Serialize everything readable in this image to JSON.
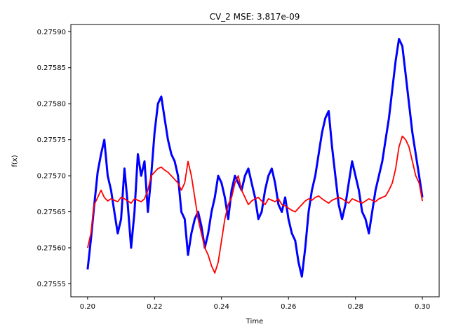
{
  "chart_data": {
    "type": "line",
    "title": "CV_2 MSE: 3.817e-09",
    "xlabel": "Time",
    "ylabel": "f(x)",
    "xlim": [
      0.195,
      0.305
    ],
    "ylim": [
      0.275532,
      0.27591
    ],
    "xticks": [
      0.2,
      0.22,
      0.24,
      0.26,
      0.28,
      0.3
    ],
    "xtick_labels": [
      "0.20",
      "0.22",
      "0.24",
      "0.26",
      "0.28",
      "0.30"
    ],
    "yticks": [
      0.27555,
      0.2756,
      0.27565,
      0.2757,
      0.27575,
      0.2758,
      0.27585,
      0.2759
    ],
    "ytick_labels": [
      "0.27555",
      "0.27560",
      "0.27565",
      "0.27570",
      "0.27575",
      "0.27580",
      "0.27585",
      "0.27590"
    ],
    "grid": false,
    "series": [
      {
        "color": "#0000ff",
        "x": [
          0.2,
          0.201,
          0.202,
          0.203,
          0.204,
          0.205,
          0.206,
          0.207,
          0.208,
          0.209,
          0.21,
          0.211,
          0.212,
          0.213,
          0.214,
          0.215,
          0.216,
          0.217,
          0.218,
          0.219,
          0.22,
          0.221,
          0.222,
          0.223,
          0.224,
          0.225,
          0.226,
          0.227,
          0.228,
          0.229,
          0.23,
          0.231,
          0.232,
          0.233,
          0.234,
          0.235,
          0.236,
          0.237,
          0.238,
          0.239,
          0.24,
          0.241,
          0.242,
          0.243,
          0.244,
          0.245,
          0.246,
          0.247,
          0.248,
          0.249,
          0.25,
          0.251,
          0.252,
          0.253,
          0.254,
          0.255,
          0.256,
          0.257,
          0.258,
          0.259,
          0.26,
          0.261,
          0.262,
          0.263,
          0.264,
          0.265,
          0.266,
          0.267,
          0.268,
          0.269,
          0.27,
          0.271,
          0.272,
          0.273,
          0.274,
          0.275,
          0.276,
          0.277,
          0.278,
          0.279,
          0.28,
          0.281,
          0.282,
          0.283,
          0.284,
          0.285,
          0.286,
          0.287,
          0.288,
          0.289,
          0.29,
          0.291,
          0.292,
          0.293,
          0.294,
          0.295,
          0.296,
          0.297,
          0.298,
          0.299,
          0.3
        ],
        "y": [
          0.27557,
          0.275612,
          0.27566,
          0.275705,
          0.27573,
          0.27575,
          0.2757,
          0.27568,
          0.27565,
          0.27562,
          0.27564,
          0.27571,
          0.27566,
          0.2756,
          0.27565,
          0.27573,
          0.2757,
          0.27572,
          0.27565,
          0.2757,
          0.27576,
          0.2758,
          0.27581,
          0.27578,
          0.27575,
          0.27573,
          0.27572,
          0.2757,
          0.27565,
          0.27564,
          0.27559,
          0.27562,
          0.27564,
          0.27565,
          0.27563,
          0.2756,
          0.27562,
          0.27565,
          0.27567,
          0.2757,
          0.27569,
          0.27567,
          0.27564,
          0.27568,
          0.2757,
          0.27569,
          0.27568,
          0.2757,
          0.27571,
          0.27569,
          0.27567,
          0.27564,
          0.27565,
          0.27568,
          0.2757,
          0.27571,
          0.27569,
          0.27566,
          0.27565,
          0.27567,
          0.27564,
          0.27562,
          0.27561,
          0.27558,
          0.27556,
          0.2756,
          0.27565,
          0.27568,
          0.2757,
          0.27573,
          0.27576,
          0.27578,
          0.27579,
          0.27574,
          0.2757,
          0.27566,
          0.27564,
          0.27566,
          0.27569,
          0.27572,
          0.2757,
          0.27568,
          0.27565,
          0.27564,
          0.27562,
          0.27565,
          0.27568,
          0.2757,
          0.27572,
          0.27575,
          0.27578,
          0.27582,
          0.27586,
          0.27589,
          0.27588,
          0.27584,
          0.2758,
          0.27576,
          0.27573,
          0.2757,
          0.27567
        ]
      },
      {
        "color": "#ff0000",
        "x": [
          0.2,
          0.201,
          0.202,
          0.203,
          0.204,
          0.205,
          0.206,
          0.207,
          0.208,
          0.209,
          0.21,
          0.211,
          0.212,
          0.213,
          0.214,
          0.215,
          0.216,
          0.217,
          0.218,
          0.219,
          0.22,
          0.221,
          0.222,
          0.223,
          0.224,
          0.225,
          0.226,
          0.227,
          0.228,
          0.229,
          0.23,
          0.231,
          0.232,
          0.233,
          0.234,
          0.235,
          0.236,
          0.237,
          0.238,
          0.239,
          0.24,
          0.241,
          0.242,
          0.243,
          0.244,
          0.245,
          0.246,
          0.247,
          0.248,
          0.249,
          0.25,
          0.251,
          0.252,
          0.253,
          0.254,
          0.255,
          0.256,
          0.257,
          0.258,
          0.259,
          0.26,
          0.261,
          0.262,
          0.263,
          0.264,
          0.265,
          0.266,
          0.267,
          0.268,
          0.269,
          0.27,
          0.271,
          0.272,
          0.273,
          0.274,
          0.275,
          0.276,
          0.277,
          0.278,
          0.279,
          0.28,
          0.281,
          0.282,
          0.283,
          0.284,
          0.285,
          0.286,
          0.287,
          0.288,
          0.289,
          0.29,
          0.291,
          0.292,
          0.293,
          0.294,
          0.295,
          0.296,
          0.297,
          0.298,
          0.299,
          0.3
        ],
        "y": [
          0.2756,
          0.27562,
          0.27566,
          0.27567,
          0.27568,
          0.27567,
          0.275665,
          0.275668,
          0.275666,
          0.275664,
          0.27567,
          0.275668,
          0.275665,
          0.275662,
          0.275668,
          0.275666,
          0.275664,
          0.275668,
          0.27568,
          0.2757,
          0.275705,
          0.27571,
          0.275712,
          0.275708,
          0.275705,
          0.2757,
          0.275695,
          0.27569,
          0.27568,
          0.27569,
          0.27572,
          0.2757,
          0.27567,
          0.27564,
          0.27562,
          0.2756,
          0.27559,
          0.275575,
          0.275565,
          0.27558,
          0.27561,
          0.27564,
          0.27566,
          0.27567,
          0.27569,
          0.2757,
          0.27568,
          0.27567,
          0.27566,
          0.275665,
          0.275668,
          0.27567,
          0.275665,
          0.27566,
          0.275668,
          0.275666,
          0.275664,
          0.275668,
          0.27566,
          0.275658,
          0.275655,
          0.275652,
          0.27565,
          0.275655,
          0.27566,
          0.275665,
          0.275668,
          0.275666,
          0.27567,
          0.275672,
          0.275668,
          0.275665,
          0.275662,
          0.275666,
          0.275668,
          0.27567,
          0.275668,
          0.275665,
          0.275662,
          0.275668,
          0.275666,
          0.275664,
          0.275662,
          0.275665,
          0.275668,
          0.275666,
          0.275664,
          0.275668,
          0.27567,
          0.275672,
          0.27568,
          0.27569,
          0.27571,
          0.27574,
          0.275755,
          0.27575,
          0.27574,
          0.27572,
          0.2757,
          0.27569,
          0.275665
        ]
      }
    ]
  }
}
